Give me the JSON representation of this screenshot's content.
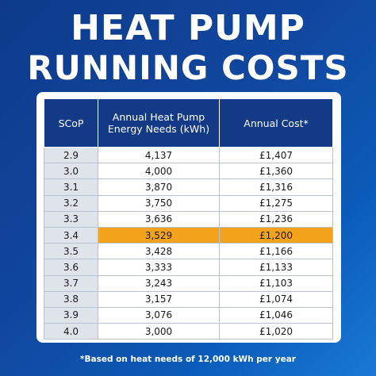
{
  "title_line1": "HEAT PUMP",
  "title_line2": "RUNNING COSTS",
  "table": {
    "headers": [
      "SCoP",
      "Annual Heat Pump Energy Needs (kWh)",
      "Annual Cost*"
    ],
    "rows": [
      [
        "2.9",
        "4,137",
        "£1,407"
      ],
      [
        "3.0",
        "4,000",
        "£1,360"
      ],
      [
        "3.1",
        "3,870",
        "£1,316"
      ],
      [
        "3.2",
        "3,750",
        "£1,275"
      ],
      [
        "3.3",
        "3,636",
        "£1,236"
      ],
      [
        "3.4",
        "3,529",
        "£1,200"
      ],
      [
        "3.5",
        "3,428",
        "£1,166"
      ],
      [
        "3.6",
        "3,333",
        "£1,133"
      ],
      [
        "3.7",
        "3,243",
        "£1,103"
      ],
      [
        "3.8",
        "3,157",
        "£1,074"
      ],
      [
        "3.9",
        "3,076",
        "£1,046"
      ],
      [
        "4.0",
        "3,000",
        "£1,020"
      ]
    ],
    "highlighted_row": "3.4",
    "highlight_color": "#f2a21b",
    "header_color": "#123a86"
  },
  "footnote": "*Based on heat needs of 12,000 kWh per year"
}
